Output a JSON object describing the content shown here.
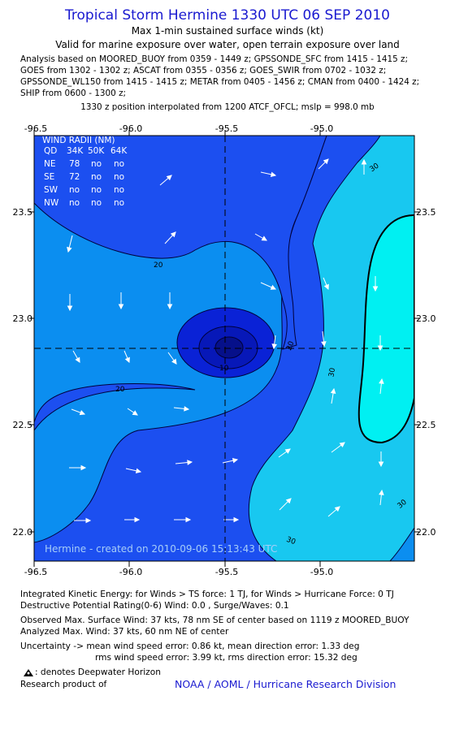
{
  "header": {
    "title": "Tropical Storm Hermine 1330 UTC 06 SEP 2010",
    "subtitle1": "Max 1-min sustained surface winds (kt)",
    "subtitle2": "Valid for marine exposure over water, open terrain exposure over land",
    "analysis_lines": [
      "Analysis based on MOORED_BUOY from 0359 - 1449 z; GPSSONDE_SFC from 1415 - 1415 z;",
      "GOES from 1302 - 1302 z; ASCAT from 0355 - 0356 z; GOES_SWIR from 0702 - 1032 z;",
      "GPSSONDE_WL150 from 1415 - 1415 z; METAR from 0405 - 1456 z; CMAN from 0400 - 1424 z;",
      "SHIP from 0600 - 1300 z;"
    ],
    "position_note": "1330 z position interpolated from 1200 ATCF_OFCL; mslp = 998.0 mb"
  },
  "map": {
    "lon_ticks": [
      "-96.5",
      "-96.0",
      "-95.5",
      "-95.0"
    ],
    "lat_ticks": [
      "23.5",
      "23.0",
      "22.5",
      "22.0"
    ],
    "contour_labels": [
      "30",
      "20",
      "20",
      "30",
      "20",
      "10",
      "30",
      "30"
    ],
    "created_text": "Hermine - created on 2010-09-06 15:13:43 UTC",
    "colors": {
      "band_10": "#0a22d6",
      "band_10_20": "#1c4ff0",
      "band_20_30": "#0b8ef0",
      "band_30_40": "#18c8f0",
      "band_40_plus": "#00f0f2",
      "core_inner": "#06108a"
    },
    "wind_radii": {
      "title": "WIND RADII (NM)",
      "header": [
        "QD",
        "34K",
        "50K",
        "64K"
      ],
      "rows": [
        [
          "NE",
          "78",
          "no",
          "no"
        ],
        [
          "SE",
          "72",
          "no",
          "no"
        ],
        [
          "SW",
          "no",
          "no",
          "no"
        ],
        [
          "NW",
          "no",
          "no",
          "no"
        ]
      ]
    }
  },
  "footer": {
    "ike": "Integrated Kinetic Energy:  for Winds > TS force: 1 TJ,  for Winds > Hurricane Force: 0 TJ",
    "dpr": "Destructive Potential Rating(0-6)   Wind: 0.0 , Surge/Waves: 0.1",
    "observed": "Observed Max. Surface Wind: 37 kts, 78 nm SE of center based on 1119 z MOORED_BUOY",
    "analyzed": "Analyzed Max. Wind: 37 kts, 60 nm NE of center",
    "uncertainty1": "Uncertainty -> mean wind speed error: 0.86 kt,   mean direction error: 1.33 deg",
    "uncertainty2": "rms wind speed error: 3.99 kt,   rms direction error: 15.32 deg",
    "legend": " : denotes Deepwater Horizon",
    "research": "Research product of",
    "credit": "NOAA / AOML / Hurricane Research Division"
  }
}
